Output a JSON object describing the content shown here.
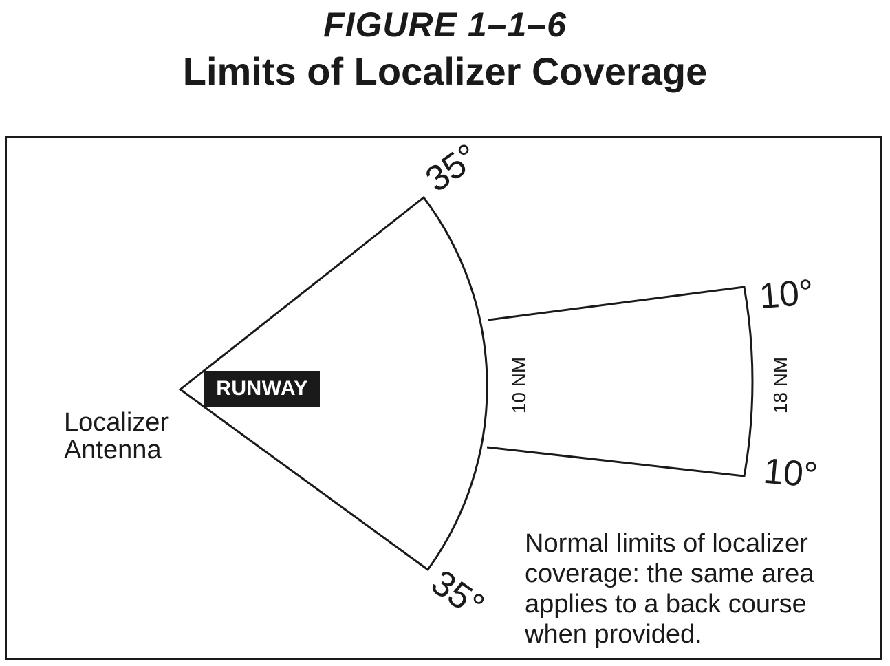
{
  "figure": {
    "label_prefix": "F",
    "label_rest": "IGURE",
    "label_number": "1–1–6",
    "title": "Limits of Localizer Coverage"
  },
  "diagram": {
    "runway_label": "RUNWAY",
    "antenna_label_line1": "Localizer",
    "antenna_label_line2": "Antenna",
    "angle_wide_top": "35°",
    "angle_wide_bottom": "35°",
    "angle_narrow_top": "10°",
    "angle_narrow_bottom": "10°",
    "distance_near": "10 NM",
    "distance_far": "18 NM",
    "note_line1": "Normal limits of localizer",
    "note_line2": "coverage: the same area",
    "note_line3": "applies to a back course",
    "note_line4": "when provided."
  }
}
